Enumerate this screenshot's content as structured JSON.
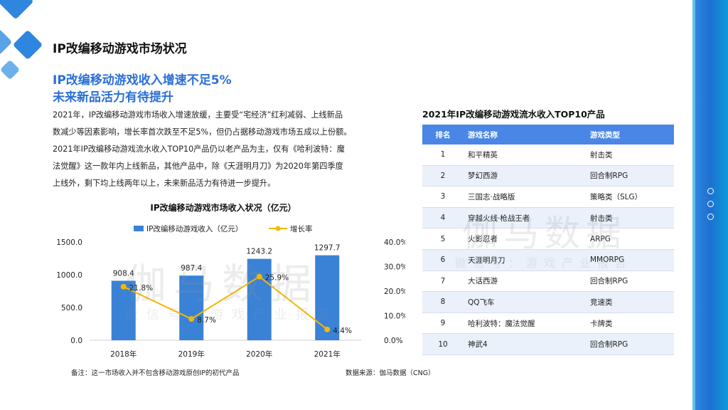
{
  "header": {
    "title": "IP改编移动游戏市场状况",
    "subtitle_line1": "IP改编移动游戏收入增速不足5%",
    "subtitle_line2": "未来新品活力有待提升"
  },
  "body_text": {
    "p1_l1": "2021年，IP改编移动游戏市场收入增速放缓，主要受“宅经济”红利减弱、上线新品",
    "p1_l2": "数减少等因素影响，增长率首次跌至不足5%，但仍占据移动游戏市场五成以上份额。",
    "p2_l1": "2021年IP改编移动游戏流水收入TOP10产品仍以老产品为主，仅有《哈利波特：魔",
    "p2_l2": "法觉醒》这一款年内上线新品，其他产品中，除《天涯明月刀》为2020年第四季度",
    "p2_l3": "上线外，剩下均上线两年以上，未来新品活力有待进一步提升。"
  },
  "chart_data": {
    "type": "bar",
    "title": "IP改编移动游戏市场收入状况（亿元）",
    "categories": [
      "2018年",
      "2019年",
      "2020年",
      "2021年"
    ],
    "series": [
      {
        "name": "IP改编移动游戏收入（亿元）",
        "kind": "bar",
        "axis": "left",
        "values": [
          908.4,
          987.4,
          1243.2,
          1297.7
        ],
        "labels": [
          "908.4",
          "987.4",
          "1243.2",
          "1297.7"
        ]
      },
      {
        "name": "增长率",
        "kind": "line",
        "axis": "right",
        "values": [
          21.8,
          8.7,
          25.9,
          4.4
        ],
        "labels": [
          "21.8%",
          "8.7%",
          "25.9%",
          "4.4%"
        ]
      }
    ],
    "y_left": {
      "min": 0,
      "max": 1500,
      "ticks": [
        "0.0",
        "500.0",
        "1000.0",
        "1500.0"
      ]
    },
    "y_right": {
      "min": 0,
      "max": 40,
      "ticks": [
        "0.0%",
        "10.0%",
        "20.0%",
        "30.0%",
        "40.0%"
      ]
    },
    "colors": {
      "bar": "#3a82d6",
      "line": "#f5b800"
    }
  },
  "notes": {
    "left": "备注：这一市场收入并不包含移动游戏原创IP的初代产品",
    "right": "数据来源：伽马数据（CNG）"
  },
  "top10": {
    "title": "2021年IP改编移动游戏流水收入TOP10产品",
    "headers": [
      "排名",
      "游戏名称",
      "游戏类型"
    ],
    "rows": [
      {
        "rank": "1",
        "name": "和平精英",
        "type": "射击类"
      },
      {
        "rank": "2",
        "name": "梦幻西游",
        "type": "回合制RPG"
      },
      {
        "rank": "3",
        "name": "三国志·战略版",
        "type": "策略类（SLG）"
      },
      {
        "rank": "4",
        "name": "穿越火线·枪战王者",
        "type": "射击类"
      },
      {
        "rank": "5",
        "name": "火影忍者",
        "type": "ARPG"
      },
      {
        "rank": "6",
        "name": "天涯明月刀",
        "type": "MMORPG"
      },
      {
        "rank": "7",
        "name": "大话西游",
        "type": "回合制RPG"
      },
      {
        "rank": "8",
        "name": "QQ飞车",
        "type": "竞速类"
      },
      {
        "rank": "9",
        "name": "哈利波特：魔法觉醒",
        "type": "卡牌类"
      },
      {
        "rank": "10",
        "name": "神武4",
        "type": "回合制RPG"
      }
    ]
  },
  "watermark": {
    "brand": "伽马数据",
    "slogan1": "微信号：游戏产业报告",
    "slogan2": "微信号：游戏产业报告"
  },
  "colors": {
    "accent": "#2a6fd6",
    "table_header": "#4a86e6",
    "band": "#1f6fd1"
  }
}
